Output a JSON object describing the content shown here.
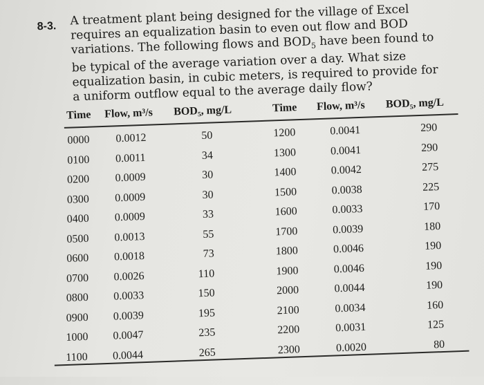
{
  "problem": {
    "number": "8-3.",
    "text": "A treatment plant being designed for the village of Excel requires an equalization basin to even out flow and BOD variations. The following flows and BOD5 have been found to be typical of the average variation over a day. What size equalization basin, in cubic meters, is required to provide for a uniform outflow equal to the average daily flow?"
  },
  "table": {
    "headers_left": [
      "Time",
      "Flow, m³/s",
      "BOD₅, mg/L"
    ],
    "headers_right": [
      "Time",
      "Flow, m³/s",
      "BOD₅, mg/L"
    ],
    "rows_left": [
      {
        "time": "0000",
        "flow": "0.0012",
        "bod": "50"
      },
      {
        "time": "0100",
        "flow": "0.0011",
        "bod": "34"
      },
      {
        "time": "0200",
        "flow": "0.0009",
        "bod": "30"
      },
      {
        "time": "0300",
        "flow": "0.0009",
        "bod": "30"
      },
      {
        "time": "0400",
        "flow": "0.0009",
        "bod": "33"
      },
      {
        "time": "0500",
        "flow": "0.0013",
        "bod": "55"
      },
      {
        "time": "0600",
        "flow": "0.0018",
        "bod": "73"
      },
      {
        "time": "0700",
        "flow": "0.0026",
        "bod": "110"
      },
      {
        "time": "0800",
        "flow": "0.0033",
        "bod": "150"
      },
      {
        "time": "0900",
        "flow": "0.0039",
        "bod": "195"
      },
      {
        "time": "1000",
        "flow": "0.0047",
        "bod": "235"
      },
      {
        "time": "1100",
        "flow": "0.0044",
        "bod": "265"
      }
    ],
    "rows_right": [
      {
        "time": "1200",
        "flow": "0.0041",
        "bod": "290"
      },
      {
        "time": "1300",
        "flow": "0.0041",
        "bod": "290"
      },
      {
        "time": "1400",
        "flow": "0.0042",
        "bod": "275"
      },
      {
        "time": "1500",
        "flow": "0.0038",
        "bod": "225"
      },
      {
        "time": "1600",
        "flow": "0.0033",
        "bod": "170"
      },
      {
        "time": "1700",
        "flow": "0.0039",
        "bod": "180"
      },
      {
        "time": "1800",
        "flow": "0.0046",
        "bod": "190"
      },
      {
        "time": "1900",
        "flow": "0.0046",
        "bod": "190"
      },
      {
        "time": "2000",
        "flow": "0.0044",
        "bod": "190"
      },
      {
        "time": "2100",
        "flow": "0.0034",
        "bod": "160"
      },
      {
        "time": "2200",
        "flow": "0.0031",
        "bod": "125"
      },
      {
        "time": "2300",
        "flow": "0.0020",
        "bod": "80"
      }
    ]
  }
}
